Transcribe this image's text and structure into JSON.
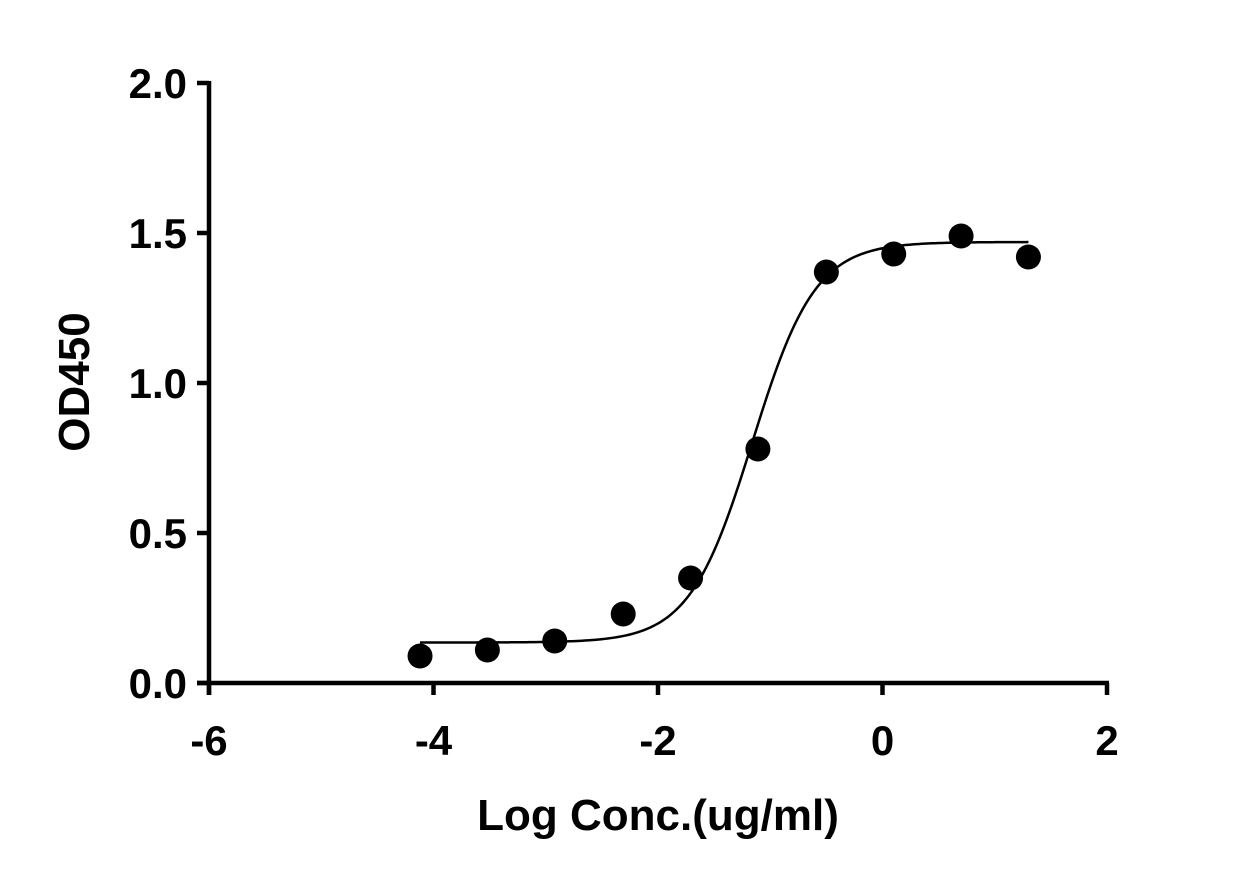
{
  "chart_data": {
    "type": "scatter",
    "title": "",
    "xlabel": "Log Conc.(ug/ml)",
    "ylabel": "OD450",
    "xlim": [
      -6,
      2
    ],
    "ylim": [
      0,
      2
    ],
    "x_ticks": [
      -6,
      -4,
      -2,
      0,
      2
    ],
    "x_tick_labels": [
      "-6",
      "-4",
      "-2",
      "0",
      "2"
    ],
    "y_ticks": [
      0,
      0.5,
      1.0,
      1.5,
      2.0
    ],
    "y_tick_labels": [
      "0.0",
      "0.5",
      "1.0",
      "1.5",
      "2.0"
    ],
    "grid": false,
    "legend": "none",
    "series": [
      {
        "kind": "points",
        "x": [
          -4.12,
          -3.52,
          -2.92,
          -2.31,
          -1.71,
          -1.11,
          -0.5,
          0.1,
          0.7,
          1.3
        ],
        "y": [
          0.09,
          0.11,
          0.14,
          0.23,
          0.35,
          0.78,
          1.37,
          1.43,
          1.49,
          1.42
        ]
      },
      {
        "kind": "fit_curve",
        "model": "4PL",
        "bottom": 0.135,
        "top": 1.47,
        "log_ec50": -1.16,
        "hill_slope": 1.55,
        "x_range": [
          -4.12,
          1.3
        ]
      }
    ],
    "colors": {
      "points": "#000000",
      "curve": "#000000",
      "axes": "#000000"
    }
  }
}
